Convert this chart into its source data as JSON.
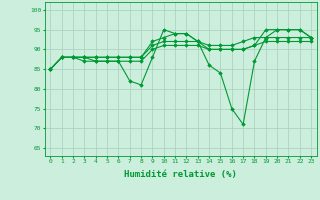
{
  "xlabel": "Humidité relative (%)",
  "background_color": "#cceedd",
  "grid_color": "#aaccbb",
  "line_color": "#009933",
  "xlim": [
    -0.5,
    23.5
  ],
  "ylim": [
    63,
    102
  ],
  "yticks": [
    65,
    70,
    75,
    80,
    85,
    90,
    95,
    100
  ],
  "xticks": [
    0,
    1,
    2,
    3,
    4,
    5,
    6,
    7,
    8,
    9,
    10,
    11,
    12,
    13,
    14,
    15,
    16,
    17,
    18,
    19,
    20,
    21,
    22,
    23
  ],
  "lines": [
    [
      85,
      88,
      88,
      88,
      87,
      87,
      87,
      82,
      81,
      88,
      95,
      94,
      94,
      92,
      86,
      84,
      75,
      71,
      87,
      93,
      95,
      95,
      95,
      93
    ],
    [
      85,
      88,
      88,
      87,
      87,
      87,
      87,
      87,
      87,
      90,
      91,
      91,
      91,
      91,
      90,
      90,
      90,
      90,
      91,
      92,
      92,
      92,
      92,
      92
    ],
    [
      85,
      88,
      88,
      88,
      88,
      88,
      88,
      88,
      88,
      91,
      92,
      92,
      92,
      92,
      91,
      91,
      91,
      92,
      93,
      93,
      93,
      93,
      93,
      93
    ],
    [
      85,
      88,
      88,
      88,
      88,
      88,
      88,
      88,
      88,
      92,
      93,
      94,
      94,
      92,
      90,
      90,
      90,
      90,
      91,
      95,
      95,
      95,
      95,
      93
    ]
  ]
}
